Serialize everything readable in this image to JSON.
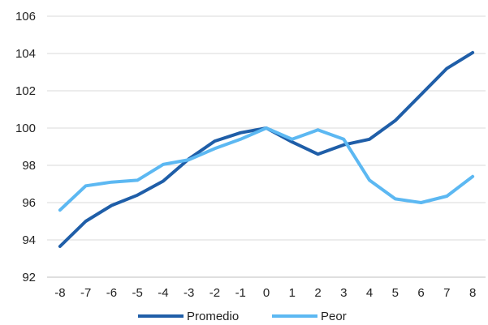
{
  "chart_data": {
    "type": "line",
    "x": [
      -8,
      -7,
      -6,
      -5,
      -4,
      -3,
      -2,
      -1,
      0,
      1,
      2,
      3,
      4,
      5,
      6,
      7,
      8
    ],
    "series": [
      {
        "name": "Promedio",
        "color": "#1f5ea8",
        "values": [
          93.65,
          95.0,
          95.85,
          96.4,
          97.15,
          98.35,
          99.3,
          99.75,
          100.0,
          99.25,
          98.6,
          99.1,
          99.4,
          100.4,
          101.8,
          103.2,
          104.05
        ]
      },
      {
        "name": "Peor",
        "color": "#5cb8f2",
        "values": [
          95.6,
          96.9,
          97.1,
          97.2,
          98.05,
          98.3,
          98.9,
          99.4,
          100.0,
          99.4,
          99.9,
          99.4,
          97.2,
          96.2,
          96.0,
          96.35,
          97.4
        ]
      }
    ],
    "y_ticks": [
      92,
      94,
      96,
      98,
      100,
      102,
      104,
      106
    ],
    "ylim": [
      92,
      106
    ],
    "grid": "horizontal",
    "legend": "bottom"
  }
}
